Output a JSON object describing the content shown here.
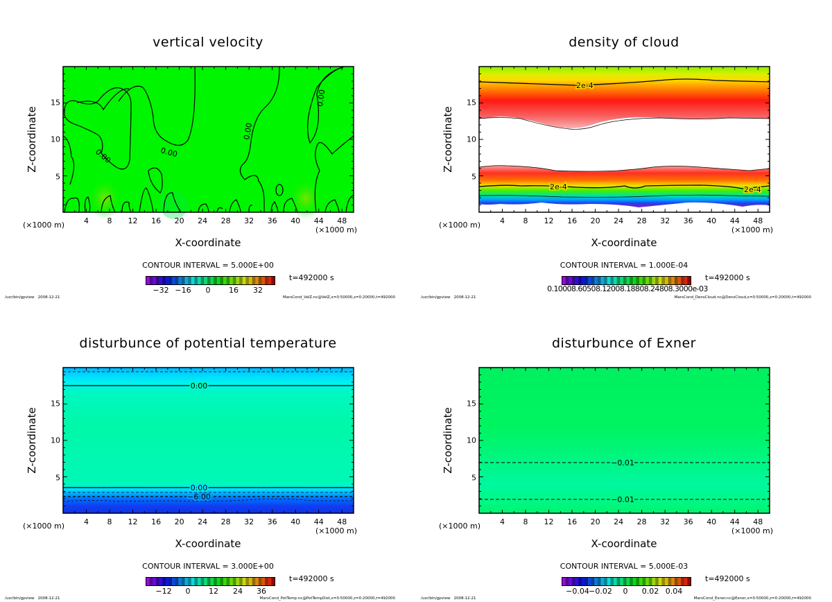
{
  "figure": {
    "footer_program": "/usr/bin/gpview",
    "footer_date": "2008-12-21",
    "time_label": "t=492000 s",
    "x_axis_label": "X-coordinate",
    "y_axis_label": "Z-coordinate",
    "x_unit_left": "(×1000 m)",
    "x_unit_right": "(×1000 m)"
  },
  "chart_data": [
    {
      "type": "heatmap",
      "id": "velz",
      "title": "vertical velocity",
      "xlabel": "X-coordinate",
      "ylabel": "Z-coordinate",
      "xlim": [
        0,
        50
      ],
      "ylim": [
        0,
        20
      ],
      "x_ticks": [
        "4",
        "8",
        "12",
        "16",
        "20",
        "24",
        "28",
        "32",
        "36",
        "40",
        "44",
        "48"
      ],
      "y_ticks": [
        "5",
        "10",
        "15"
      ],
      "contour_interval": "CONTOUR INTERVAL = 5.000E+00",
      "colorbar_ticks": [
        "−32",
        "−16",
        "0",
        "16",
        "32"
      ],
      "colorbar_range": [
        -40,
        40
      ],
      "contour_labels": [
        "0.00",
        "0.00",
        "0.00",
        "0.00"
      ],
      "field_color": "#00f500",
      "source": "MarsCond_VelZ.nc@VelZ,x=0:50000,z=0:20000,t=492000"
    },
    {
      "type": "heatmap",
      "id": "denscloud",
      "title": "density of cloud",
      "xlabel": "X-coordinate",
      "ylabel": "Z-coordinate",
      "xlim": [
        0,
        50
      ],
      "ylim": [
        0,
        20
      ],
      "x_ticks": [
        "4",
        "8",
        "12",
        "16",
        "20",
        "24",
        "28",
        "32",
        "36",
        "40",
        "44",
        "48"
      ],
      "y_ticks": [
        "5",
        "10",
        "15"
      ],
      "contour_interval": "CONTOUR INTERVAL = 1.000E-04",
      "colorbar_ticks_overlapped": "0.10008.60508.12008.18808.24808.3000e-03",
      "contour_labels": [
        "2e-4",
        "2e-4",
        "2e-4"
      ],
      "source": "MarsCond_DensCloud.nc@DensCloud,x=0:50000,z=0:20000,t=492000"
    },
    {
      "type": "heatmap",
      "id": "pottemp",
      "title": "disturbunce of potential temperature",
      "xlabel": "X-coordinate",
      "ylabel": "Z-coordinate",
      "xlim": [
        0,
        50
      ],
      "ylim": [
        0,
        20
      ],
      "x_ticks": [
        "4",
        "8",
        "12",
        "16",
        "20",
        "24",
        "28",
        "32",
        "36",
        "40",
        "44",
        "48"
      ],
      "y_ticks": [
        "5",
        "10",
        "15"
      ],
      "contour_interval": "CONTOUR INTERVAL = 3.000E+00",
      "colorbar_ticks": [
        "−12",
        "0",
        "12",
        "24",
        "36"
      ],
      "contour_labels": [
        "0.00",
        "0.00",
        "−6.00"
      ],
      "contour_levels_z": [
        17.5,
        3.5
      ],
      "source": "MarsCond_PotTemp.nc@PotTempDist,x=0:50000,z=0:20000,t=492000"
    },
    {
      "type": "heatmap",
      "id": "exner",
      "title": "disturbunce of Exner",
      "xlabel": "X-coordinate",
      "ylabel": "Z-coordinate",
      "xlim": [
        0,
        50
      ],
      "ylim": [
        0,
        20
      ],
      "x_ticks": [
        "4",
        "8",
        "12",
        "16",
        "20",
        "24",
        "28",
        "32",
        "36",
        "40",
        "44",
        "48"
      ],
      "y_ticks": [
        "5",
        "10",
        "15"
      ],
      "contour_interval": "CONTOUR INTERVAL = 5.000E-03",
      "colorbar_ticks": [
        "−0.04",
        "−0.02",
        "0",
        "0.02",
        "0.04"
      ],
      "contour_labels": [
        "−0.01",
        "−0.01"
      ],
      "contour_levels_z": [
        7.0,
        1.9
      ],
      "source": "MarsCond_Exner.nc@Exner,x=0:50000,z=0:20000,t=492000"
    }
  ]
}
